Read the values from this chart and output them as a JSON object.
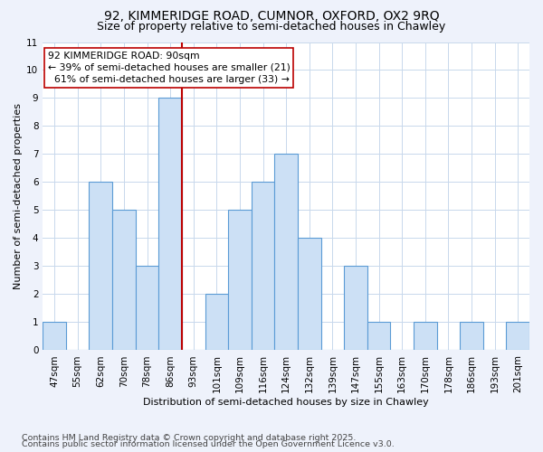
{
  "title1": "92, KIMMERIDGE ROAD, CUMNOR, OXFORD, OX2 9RQ",
  "title2": "Size of property relative to semi-detached houses in Chawley",
  "xlabel": "Distribution of semi-detached houses by size in Chawley",
  "ylabel": "Number of semi-detached properties",
  "bin_labels": [
    "47sqm",
    "55sqm",
    "62sqm",
    "70sqm",
    "78sqm",
    "86sqm",
    "93sqm",
    "101sqm",
    "109sqm",
    "116sqm",
    "124sqm",
    "132sqm",
    "139sqm",
    "147sqm",
    "155sqm",
    "163sqm",
    "170sqm",
    "178sqm",
    "186sqm",
    "193sqm",
    "201sqm"
  ],
  "counts": [
    1,
    0,
    6,
    5,
    3,
    9,
    0,
    2,
    5,
    6,
    7,
    4,
    0,
    3,
    1,
    0,
    1,
    0,
    1,
    0,
    1
  ],
  "bar_color": "#cce0f5",
  "bar_edge_color": "#5b9bd5",
  "ref_bar_index": 5,
  "ref_line_color": "#bb0000",
  "annotation_line1": "92 KIMMERIDGE ROAD: 90sqm",
  "annotation_line2": "← 39% of semi-detached houses are smaller (21)",
  "annotation_line3": "  61% of semi-detached houses are larger (33) →",
  "annotation_box_color": "#ffffff",
  "annotation_box_edge": "#bb0000",
  "ylim": [
    0,
    11
  ],
  "yticks": [
    0,
    1,
    2,
    3,
    4,
    5,
    6,
    7,
    8,
    9,
    10,
    11
  ],
  "footer1": "Contains HM Land Registry data © Crown copyright and database right 2025.",
  "footer2": "Contains public sector information licensed under the Open Government Licence v3.0.",
  "background_color": "#eef2fb",
  "plot_background": "#ffffff",
  "grid_color": "#c8d8ec",
  "title1_fontsize": 10,
  "title2_fontsize": 9,
  "axis_label_fontsize": 8,
  "tick_fontsize": 7.5,
  "annotation_fontsize": 7.8,
  "footer_fontsize": 6.8
}
